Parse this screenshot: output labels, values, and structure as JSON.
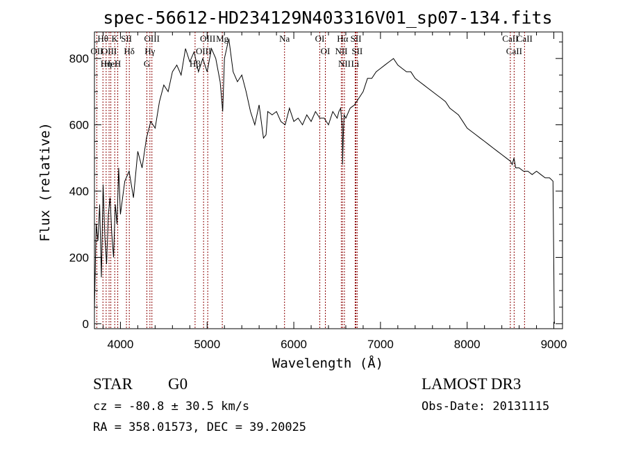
{
  "chart_data": {
    "type": "line",
    "title": "spec-56612-HD234129N403316V01_sp07-134.fits",
    "xlabel": "Wavelength (Å)",
    "ylabel": "Flux (relative)",
    "xlim": [
      3700,
      9100
    ],
    "ylim": [
      -15,
      880
    ],
    "x_ticks": [
      4000,
      5000,
      6000,
      7000,
      8000,
      9000
    ],
    "y_ticks": [
      0,
      200,
      400,
      600,
      800
    ],
    "series": [
      {
        "name": "spectrum",
        "x": [
          3700,
          3720,
          3740,
          3760,
          3780,
          3800,
          3820,
          3840,
          3860,
          3880,
          3900,
          3920,
          3940,
          3960,
          3980,
          4000,
          4050,
          4100,
          4150,
          4200,
          4250,
          4300,
          4350,
          4400,
          4450,
          4500,
          4550,
          4600,
          4650,
          4700,
          4750,
          4800,
          4850,
          4900,
          4950,
          5000,
          5050,
          5100,
          5150,
          5180,
          5200,
          5250,
          5300,
          5350,
          5400,
          5450,
          5500,
          5550,
          5600,
          5650,
          5680,
          5700,
          5750,
          5800,
          5850,
          5900,
          5950,
          6000,
          6050,
          6100,
          6150,
          6200,
          6250,
          6300,
          6350,
          6400,
          6450,
          6500,
          6520,
          6540,
          6560,
          6563,
          6570,
          6580,
          6600,
          6650,
          6700,
          6750,
          6800,
          6850,
          6900,
          6950,
          7000,
          7050,
          7100,
          7150,
          7200,
          7250,
          7300,
          7350,
          7400,
          7450,
          7500,
          7550,
          7600,
          7650,
          7700,
          7750,
          7800,
          7850,
          7900,
          7950,
          8000,
          8050,
          8100,
          8150,
          8200,
          8250,
          8300,
          8350,
          8400,
          8450,
          8500,
          8520,
          8540,
          8560,
          8600,
          8650,
          8700,
          8750,
          8800,
          8850,
          8900,
          8950,
          8990,
          9000,
          9005,
          9008
        ],
        "values": [
          40,
          300,
          250,
          360,
          140,
          420,
          260,
          180,
          330,
          380,
          270,
          200,
          360,
          300,
          470,
          330,
          430,
          460,
          380,
          520,
          470,
          560,
          610,
          590,
          670,
          720,
          700,
          760,
          780,
          750,
          830,
          790,
          820,
          760,
          800,
          760,
          830,
          800,
          730,
          640,
          800,
          860,
          760,
          730,
          750,
          700,
          640,
          600,
          660,
          560,
          570,
          640,
          630,
          640,
          610,
          600,
          650,
          610,
          620,
          600,
          630,
          610,
          640,
          620,
          620,
          600,
          640,
          620,
          640,
          650,
          590,
          480,
          560,
          630,
          620,
          650,
          660,
          680,
          700,
          740,
          740,
          760,
          770,
          780,
          790,
          800,
          780,
          770,
          760,
          760,
          740,
          730,
          720,
          710,
          700,
          690,
          680,
          670,
          650,
          640,
          630,
          610,
          590,
          580,
          570,
          560,
          550,
          540,
          530,
          520,
          510,
          500,
          490,
          480,
          500,
          470,
          470,
          460,
          460,
          450,
          460,
          450,
          440,
          440,
          430,
          170,
          10,
          0
        ]
      }
    ],
    "spectral_lines": [
      {
        "label": "Hθ",
        "x": 3798
      },
      {
        "label": "OII",
        "x": 3727
      },
      {
        "label": "OIII",
        "x": 3869
      },
      {
        "label": "Hη",
        "x": 3835
      },
      {
        "label": "K",
        "x": 3934
      },
      {
        "label": "H",
        "x": 3969
      },
      {
        "label": "HeI",
        "x": 3889
      },
      {
        "label": "SII",
        "x": 4069
      },
      {
        "label": "Hδ",
        "x": 4102
      },
      {
        "label": "OIII",
        "x": 4363
      },
      {
        "label": "Hγ",
        "x": 4340
      },
      {
        "label": "G",
        "x": 4305
      },
      {
        "label": "OIII",
        "x": 5007
      },
      {
        "label": "OIII",
        "x": 4959
      },
      {
        "label": "Hβ",
        "x": 4861
      },
      {
        "label": "Mg",
        "x": 5175
      },
      {
        "label": "Na",
        "x": 5893
      },
      {
        "label": "OI",
        "x": 6300
      },
      {
        "label": "OI",
        "x": 6364
      },
      {
        "label": "Hα",
        "x": 6563
      },
      {
        "label": "NII",
        "x": 6548
      },
      {
        "label": "NII",
        "x": 6584
      },
      {
        "label": "SII",
        "x": 6717
      },
      {
        "label": "SII",
        "x": 6731
      },
      {
        "label": "Li",
        "x": 6708
      },
      {
        "label": "CaII",
        "x": 8498
      },
      {
        "label": "CaII",
        "x": 8542
      },
      {
        "label": "CaII",
        "x": 8662
      }
    ]
  },
  "info": {
    "object_type": "STAR",
    "subclass": "G0",
    "survey": "LAMOST DR3",
    "redshift": "cz = -80.8 ± 30.5 km/s",
    "obs_date": "Obs-Date: 20131115",
    "coords": "RA = 358.01573, DEC =  39.20025"
  }
}
